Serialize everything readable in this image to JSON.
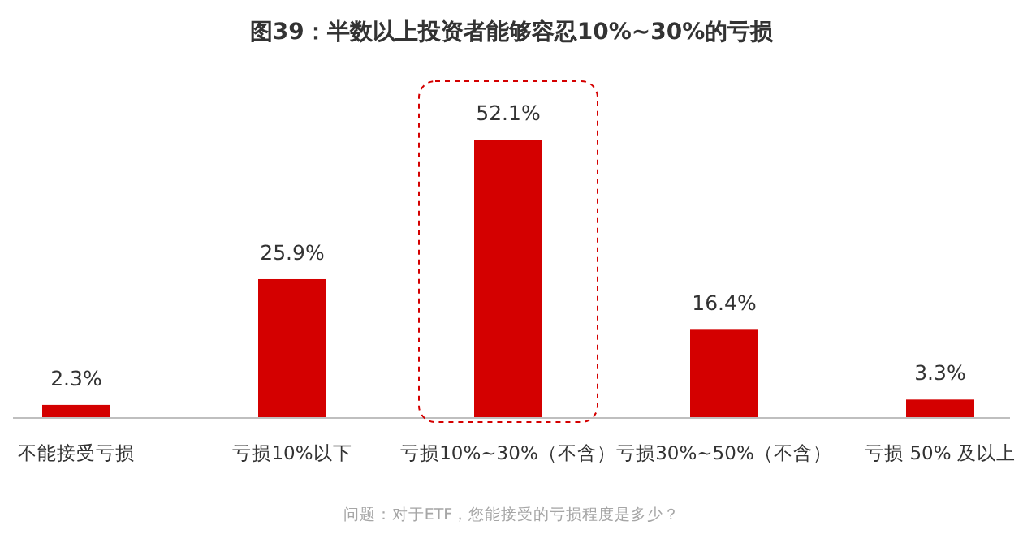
{
  "chart_data": {
    "type": "bar",
    "title": "图39：半数以上投资者能够容忍10%~30%的亏损",
    "categories": [
      "不能接受亏损",
      "亏损10%以下",
      "亏损10%~30%（不含）",
      "亏损30%~50%（不含）",
      "亏损 50% 及以上"
    ],
    "values": [
      2.3,
      25.9,
      52.1,
      16.4,
      3.3
    ],
    "value_labels": [
      "2.3%",
      "25.9%",
      "52.1%",
      "16.4%",
      "3.3%"
    ],
    "color": "#d40000",
    "annotations": [
      "问题：对于ETF，您能接受的亏损程度是多少？"
    ]
  }
}
